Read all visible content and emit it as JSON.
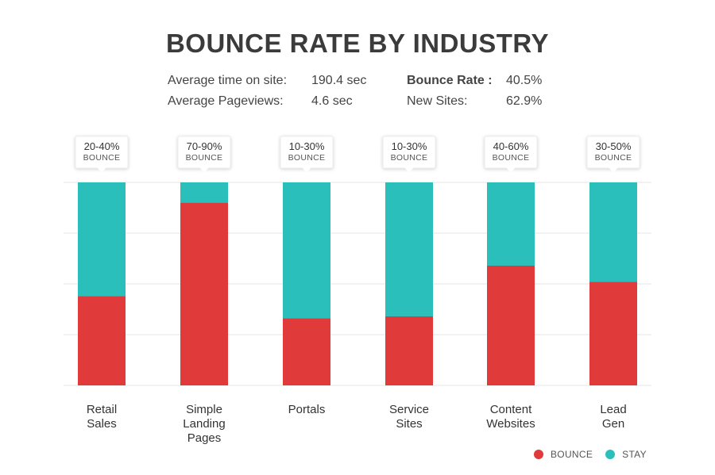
{
  "title": "BOUNCE RATE BY INDUSTRY",
  "stats": {
    "left": [
      {
        "label": "Average time on site:",
        "value": "190.4 sec"
      },
      {
        "label": "Average Pageviews:",
        "value": "4.6 sec"
      }
    ],
    "right": [
      {
        "label": "Bounce Rate :",
        "value": "40.5%"
      },
      {
        "label": "New Sites:",
        "value": "62.9%"
      }
    ]
  },
  "colors": {
    "bounce": "#e03a3a",
    "stay": "#2bbfbc",
    "grid": "#e6e6e6"
  },
  "chart_data": {
    "type": "bar",
    "stacked": true,
    "categories": [
      [
        "Retail",
        "Sales"
      ],
      [
        "Simple",
        "Landing",
        "Pages"
      ],
      [
        "Portals"
      ],
      [
        "Service",
        "Sites"
      ],
      [
        "Content",
        "Websites"
      ],
      [
        "Lead",
        "Gen"
      ]
    ],
    "callouts": [
      {
        "range": "20-40%",
        "label": "BOUNCE"
      },
      {
        "range": "70-90%",
        "label": "BOUNCE"
      },
      {
        "range": "10-30%",
        "label": "BOUNCE"
      },
      {
        "range": "10-30%",
        "label": "BOUNCE"
      },
      {
        "range": "40-60%",
        "label": "BOUNCE"
      },
      {
        "range": "30-50%",
        "label": "BOUNCE"
      }
    ],
    "series": [
      {
        "name": "BOUNCE",
        "values": [
          44,
          90,
          33,
          34,
          59,
          51
        ]
      },
      {
        "name": "STAY",
        "values": [
          56,
          10,
          67,
          66,
          41,
          49
        ]
      }
    ],
    "ylim": [
      0,
      100
    ],
    "grid": true,
    "legend": "bottom-right"
  }
}
